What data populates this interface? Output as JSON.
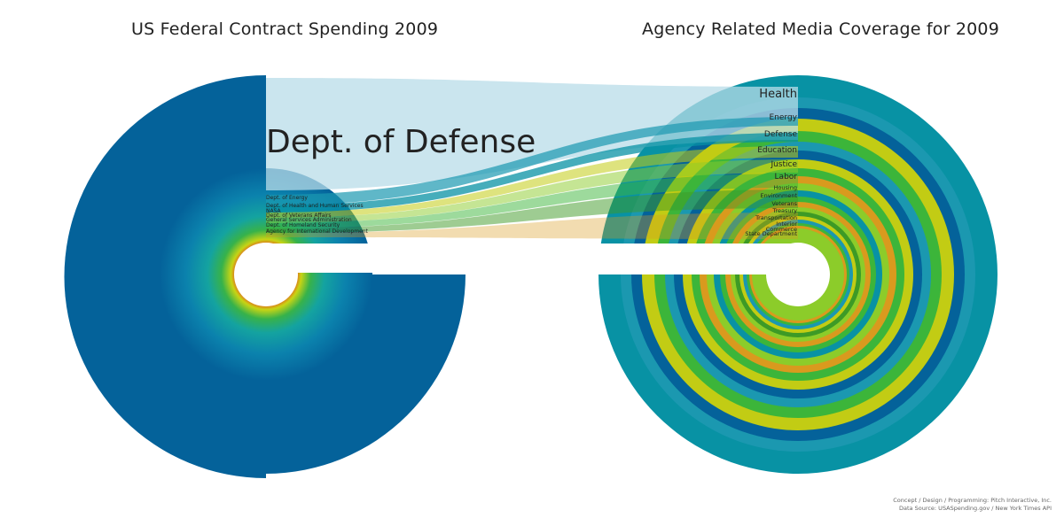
{
  "titles": {
    "left": "US Federal Contract Spending 2009",
    "right": "Agency Related Media Coverage for 2009"
  },
  "left_labels": [
    {
      "text": "Dept. of Defense",
      "size": "large"
    },
    {
      "text": "Dept. of Energy"
    },
    {
      "text": "Dept. of Health and Human Services"
    },
    {
      "text": "NASA"
    },
    {
      "text": "Dept. of Veterans Affairs"
    },
    {
      "text": "General Services Administration"
    },
    {
      "text": "Dept. of Homeland Security"
    },
    {
      "text": "Agency for International Development"
    }
  ],
  "right_labels": [
    {
      "text": "Health",
      "size": "large"
    },
    {
      "text": "Energy"
    },
    {
      "text": "Defense"
    },
    {
      "text": "Education"
    },
    {
      "text": "Justice"
    },
    {
      "text": "Labor"
    },
    {
      "text": "Housing"
    },
    {
      "text": "Environment"
    },
    {
      "text": "Veterans"
    },
    {
      "text": "Treasury"
    },
    {
      "text": "Transportation"
    },
    {
      "text": "Interior"
    },
    {
      "text": "Commerce"
    },
    {
      "text": "State Department"
    }
  ],
  "colors": {
    "dark_blue": "#04629a",
    "teal": "#0892a4",
    "teal_mid": "#1b98b0",
    "yellow_green": "#c2cc14",
    "green": "#3cb53a",
    "light_green": "#8ccc2a",
    "orange": "#d99a1e",
    "dark_green": "#3d9a26",
    "light_blue": "#b8dce8"
  },
  "credits": {
    "line1": "Concept / Design / Programming: Pitch Interactive, Inc.",
    "line2": "Data Source: USASpending.gov / New York Times API"
  }
}
